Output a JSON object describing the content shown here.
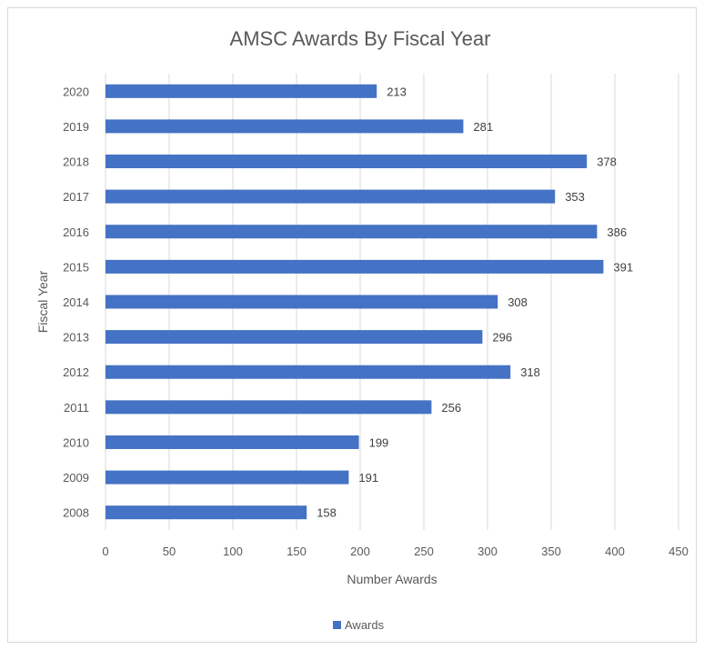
{
  "chart_data": {
    "type": "bar",
    "orientation": "horizontal",
    "title": "AMSC Awards By Fiscal Year",
    "xlabel": "Number Awards",
    "ylabel": "Fiscal Year",
    "categories": [
      "2008",
      "2009",
      "2010",
      "2011",
      "2012",
      "2013",
      "2014",
      "2015",
      "2016",
      "2017",
      "2018",
      "2019",
      "2020"
    ],
    "series": [
      {
        "name": "Awards",
        "values": [
          158,
          191,
          199,
          256,
          318,
          296,
          308,
          391,
          386,
          353,
          378,
          281,
          213
        ],
        "color": "#4472c4"
      }
    ],
    "xlim": [
      0,
      450
    ],
    "xticks": [
      0,
      50,
      100,
      150,
      200,
      250,
      300,
      350,
      400,
      450
    ],
    "grid": true,
    "legend_position": "bottom"
  }
}
